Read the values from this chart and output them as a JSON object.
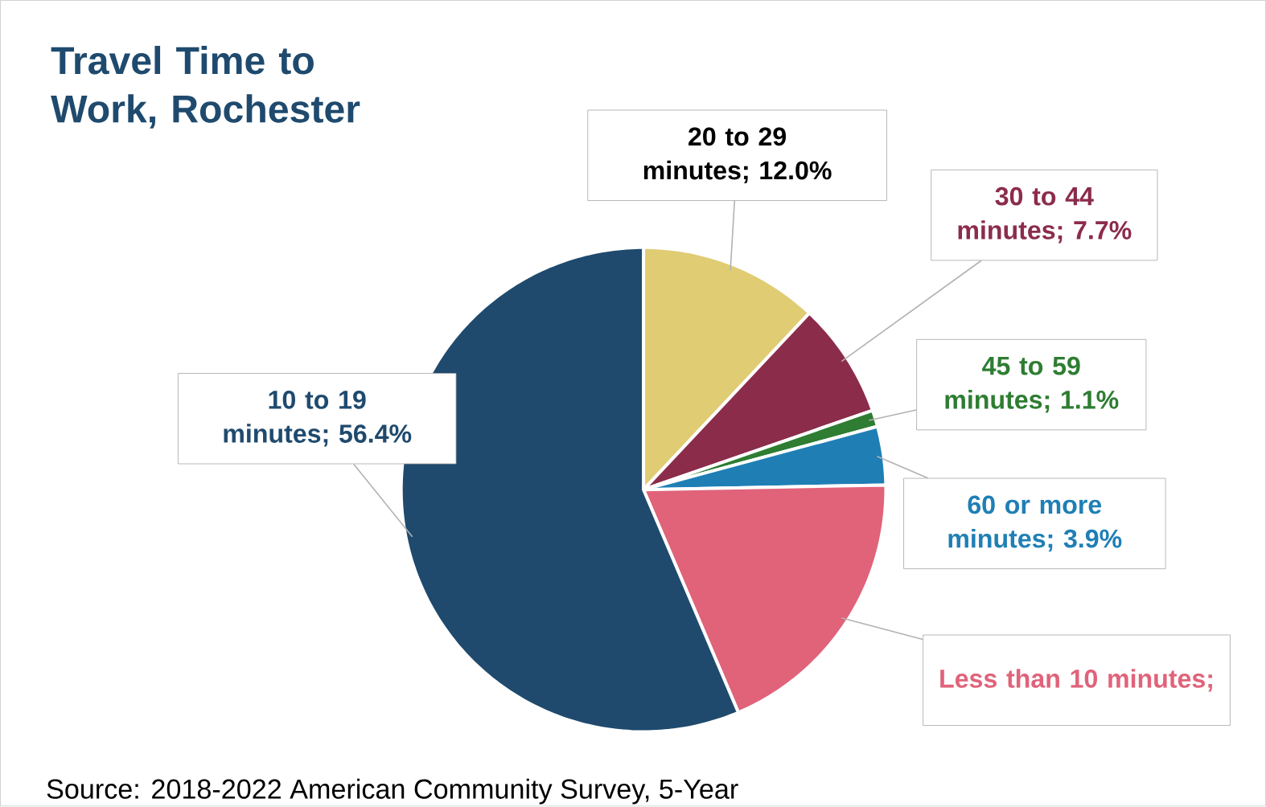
{
  "chart_data": {
    "type": "pie",
    "title": "Travel Time to Work, Rochester",
    "categories": [
      null,
      null,
      null,
      null,
      null,
      null
    ],
    "values": [
      12.0,
      7.7,
      1.1,
      3.9,
      18.9,
      56.4
    ],
    "value_labels": [
      "20 to 29 minutes; 12.0%",
      "30 to 44 minutes; 7.7%",
      "45 to 59 minutes; 1.1%",
      "60 or more minutes; 3.9%",
      "Less than 10 minutes;",
      "10 to 19 minutes; 56.4%"
    ],
    "colors": [
      "#e0cc73",
      "#8b2c4b",
      "#2e7d32",
      "#1f7fb5",
      "#e0637a",
      "#1f4a6e"
    ],
    "legend": false,
    "annotations": [
      "Source: 2018-2022 American Community Survey, 5-Year"
    ]
  }
}
